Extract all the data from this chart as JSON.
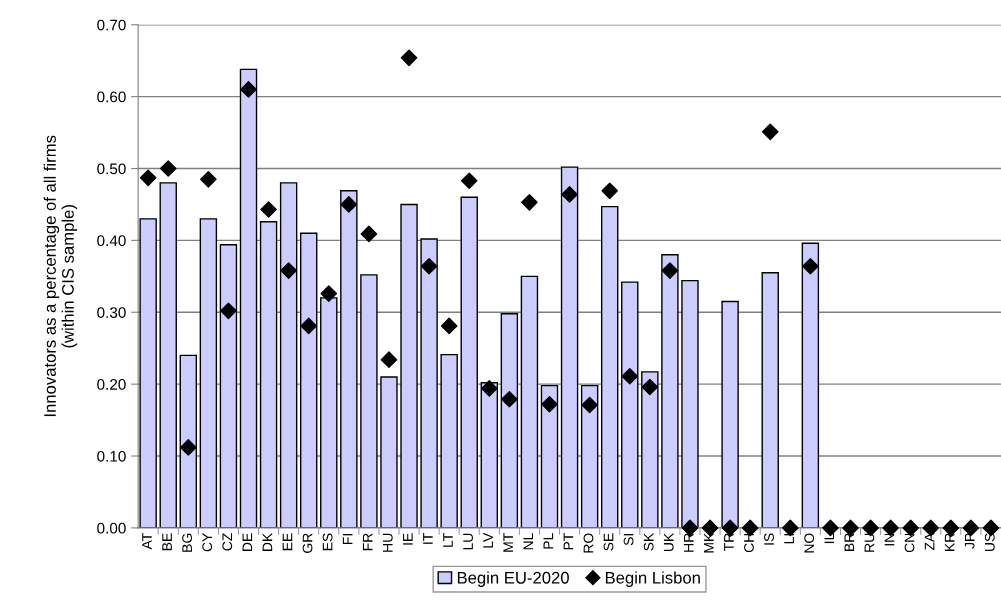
{
  "chart_data": {
    "type": "bar",
    "ylabel": "Innovators as a percentage of all firms\n(within CIS sample)",
    "categories": [
      "AT",
      "BE",
      "BG",
      "CY",
      "CZ",
      "DE",
      "DK",
      "EE",
      "GR",
      "ES",
      "FI",
      "FR",
      "HU",
      "IE",
      "IT",
      "LT",
      "LU",
      "LV",
      "MT",
      "NL",
      "PL",
      "PT",
      "RO",
      "SE",
      "SI",
      "SK",
      "UK",
      "HR",
      "MK",
      "TR",
      "CH",
      "IS",
      "LI",
      "NO",
      "IL",
      "BR",
      "RU",
      "IN",
      "CN",
      "ZA",
      "KR",
      "JP",
      "US"
    ],
    "series": [
      {
        "name": "Begin EU-2020",
        "color": "#ccccff",
        "values": [
          0.43,
          0.48,
          0.24,
          0.43,
          0.394,
          0.638,
          0.426,
          0.48,
          0.41,
          0.32,
          0.469,
          0.352,
          0.21,
          0.45,
          0.402,
          0.241,
          0.46,
          0.202,
          0.298,
          0.35,
          0.198,
          0.502,
          0.198,
          0.447,
          0.342,
          0.217,
          0.38,
          0.344,
          null,
          0.315,
          null,
          0.355,
          null,
          0.396,
          null,
          null,
          null,
          null,
          null,
          null,
          null,
          null,
          null
        ]
      },
      {
        "name": "Begin Lisbon",
        "type": "scatter",
        "marker": "diamond",
        "color": "#000000",
        "values": [
          0.487,
          0.5,
          0.112,
          0.485,
          0.302,
          0.61,
          0.443,
          0.358,
          0.281,
          0.326,
          0.45,
          0.409,
          0.234,
          0.654,
          0.364,
          0.281,
          0.483,
          0.194,
          0.179,
          0.453,
          0.172,
          0.464,
          0.171,
          0.469,
          0.211,
          0.196,
          0.358,
          0,
          0,
          0,
          0,
          0.551,
          0,
          0.364,
          0,
          0,
          0,
          0,
          0,
          0,
          0,
          0,
          0
        ]
      }
    ],
    "ylim": [
      0,
      0.7
    ],
    "yticks": [
      {
        "value": 0,
        "label": "0.00"
      },
      {
        "value": 0.1,
        "label": "0.10"
      },
      {
        "value": 0.2,
        "label": "0.20"
      },
      {
        "value": 0.3,
        "label": "0.30"
      },
      {
        "value": 0.4,
        "label": "0.40"
      },
      {
        "value": 0.5,
        "label": "0.50"
      },
      {
        "value": 0.6,
        "label": "0.60"
      },
      {
        "value": 0.7,
        "label": "0.70"
      }
    ],
    "grid": "y",
    "legend": "bottom"
  }
}
